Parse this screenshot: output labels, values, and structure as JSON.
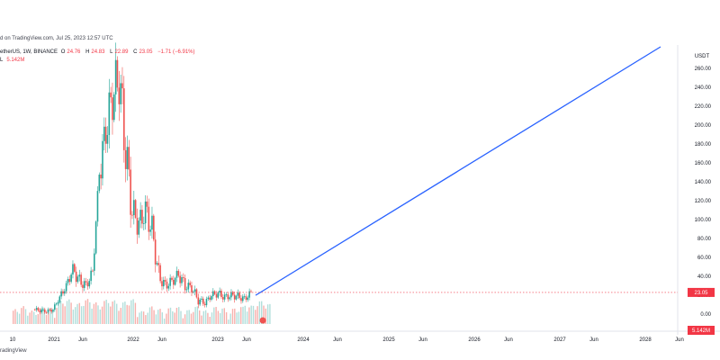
{
  "caption": "d on TradingView.com, Jul 25, 2023 12:57 UTC",
  "symbol": {
    "name": "etherUS, 1W, BINANCE",
    "open_label": "O",
    "open": "24.76",
    "high_label": "H",
    "high": "24.83",
    "low_label": "L",
    "low": "22.89",
    "close_label": "C",
    "close": "23.05",
    "change": "−1.71 (−6.91%)"
  },
  "volume": {
    "label": "L",
    "value": "5.142M"
  },
  "footer": {
    "brand": "radingView"
  },
  "colors": {
    "up": "#26a69a",
    "down": "#ef5350",
    "trend_line": "#2962ff",
    "price_badge": "#f23645",
    "volume_up": "#b2dfdb",
    "volume_down": "#f7b1ad"
  },
  "chart_data": {
    "type": "candlestick",
    "unit": "USDT",
    "x_ticks": [
      "10",
      "2021",
      "Jun",
      "2022",
      "Jun",
      "2023",
      "Jun",
      "2024",
      "Jun",
      "2025",
      "Jun",
      "2026",
      "Jun",
      "2027",
      "Jun",
      "2028",
      "Jun"
    ],
    "y_ticks": [
      "260.00",
      "240.00",
      "220.00",
      "200.00",
      "180.00",
      "160.00",
      "140.00",
      "120.00",
      "100.00",
      "80.00",
      "60.00",
      "40.00",
      "20.00",
      "0.00"
    ],
    "ylim": [
      -18,
      285
    ],
    "last_price": "23.05",
    "volume_badge": "5.142M",
    "weekly_close": [
      {
        "t": "2020-10",
        "v": 5
      },
      {
        "t": "2020-11",
        "v": 4
      },
      {
        "t": "2020-12",
        "v": 3
      },
      {
        "t": "2021-01",
        "v": 5
      },
      {
        "t": "2021-02",
        "v": 18
      },
      {
        "t": "2021-03",
        "v": 30
      },
      {
        "t": "2021-04",
        "v": 48
      },
      {
        "t": "2021-05",
        "v": 35
      },
      {
        "t": "2021-06",
        "v": 30
      },
      {
        "t": "2021-07",
        "v": 45
      },
      {
        "t": "2021-08",
        "v": 150
      },
      {
        "t": "2021-09",
        "v": 195
      },
      {
        "t": "2021-10",
        "v": 230
      },
      {
        "t": "2021-11",
        "v": 250
      },
      {
        "t": "2021-12",
        "v": 175
      },
      {
        "t": "2022-01",
        "v": 110
      },
      {
        "t": "2022-02",
        "v": 95
      },
      {
        "t": "2022-03",
        "v": 110
      },
      {
        "t": "2022-04",
        "v": 90
      },
      {
        "t": "2022-05",
        "v": 40
      },
      {
        "t": "2022-06",
        "v": 30
      },
      {
        "t": "2022-07",
        "v": 35
      },
      {
        "t": "2022-08",
        "v": 42
      },
      {
        "t": "2022-09",
        "v": 30
      },
      {
        "t": "2022-10",
        "v": 28
      },
      {
        "t": "2022-11",
        "v": 15
      },
      {
        "t": "2022-12",
        "v": 12
      },
      {
        "t": "2023-01",
        "v": 20
      },
      {
        "t": "2023-02",
        "v": 22
      },
      {
        "t": "2023-03",
        "v": 18
      },
      {
        "t": "2023-04",
        "v": 20
      },
      {
        "t": "2023-05",
        "v": 19
      },
      {
        "t": "2023-06",
        "v": 16
      },
      {
        "t": "2023-07",
        "v": 23.05
      }
    ],
    "trend_line": {
      "from": {
        "t": "2023-07",
        "v": 20
      },
      "to": {
        "t": "2028-06",
        "v": 290
      }
    }
  }
}
